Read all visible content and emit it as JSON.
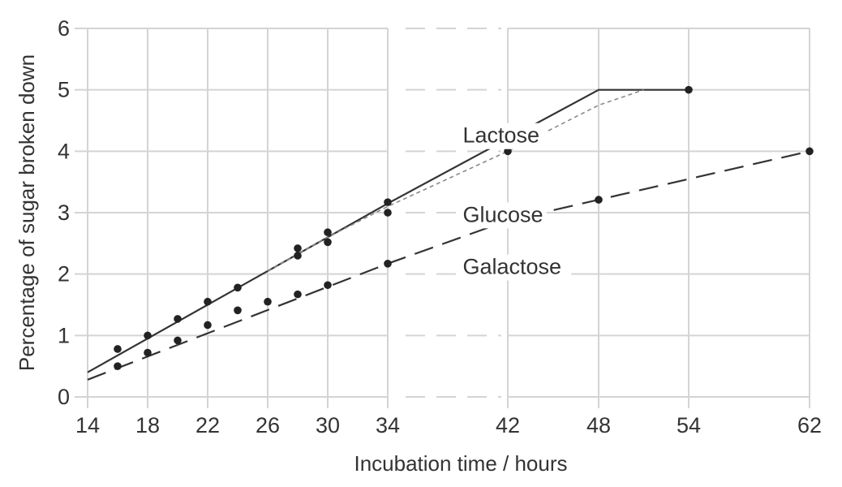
{
  "chart_data": {
    "type": "scatter",
    "xlabel": "Incubation time / hours",
    "ylabel": "Percentage of sugar broken down",
    "xlim": [
      14,
      62
    ],
    "ylim": [
      0,
      6
    ],
    "x_scale": "piecewise — gap between 34 and 42",
    "x_ticks": [
      "14",
      "18",
      "22",
      "26",
      "30",
      "34",
      "42",
      "48",
      "54",
      "62"
    ],
    "y_ticks": [
      "0",
      "1",
      "2",
      "3",
      "4",
      "5",
      "6"
    ],
    "grid": true,
    "series": [
      {
        "name": "Lactose",
        "line_style": "solid",
        "points": [
          [
            16,
            0.78
          ],
          [
            18,
            1.0
          ],
          [
            20,
            1.27
          ],
          [
            22,
            1.55
          ],
          [
            24,
            1.78
          ],
          [
            28,
            2.42
          ],
          [
            30,
            2.68
          ],
          [
            34,
            3.17
          ],
          [
            42,
            4.17
          ],
          [
            54,
            5.0
          ]
        ],
        "fit_line": [
          [
            14,
            0.4
          ],
          [
            26,
            2.05
          ],
          [
            34,
            3.15
          ],
          [
            48,
            5.0
          ],
          [
            54,
            5.0
          ]
        ]
      },
      {
        "name": "Glucose",
        "line_style": "dotted",
        "points": [
          [
            28,
            2.3
          ],
          [
            30,
            2.52
          ],
          [
            34,
            3.0
          ],
          [
            42,
            4.0
          ]
        ],
        "fit_line": [
          [
            26,
            2.05
          ],
          [
            30,
            2.6
          ],
          [
            34,
            3.1
          ],
          [
            42,
            4.0
          ],
          [
            48,
            4.75
          ],
          [
            51,
            5.0
          ]
        ]
      },
      {
        "name": "Galactose",
        "line_style": "dashed",
        "points": [
          [
            16,
            0.5
          ],
          [
            18,
            0.72
          ],
          [
            20,
            0.92
          ],
          [
            22,
            1.17
          ],
          [
            24,
            1.41
          ],
          [
            26,
            1.55
          ],
          [
            28,
            1.67
          ],
          [
            30,
            1.82
          ],
          [
            34,
            2.17
          ],
          [
            42,
            2.9
          ],
          [
            48,
            3.21
          ],
          [
            62,
            4.0
          ]
        ],
        "fit_line": [
          [
            14,
            0.28
          ],
          [
            34,
            2.17
          ],
          [
            42,
            2.87
          ],
          [
            62,
            4.0
          ]
        ]
      }
    ]
  }
}
